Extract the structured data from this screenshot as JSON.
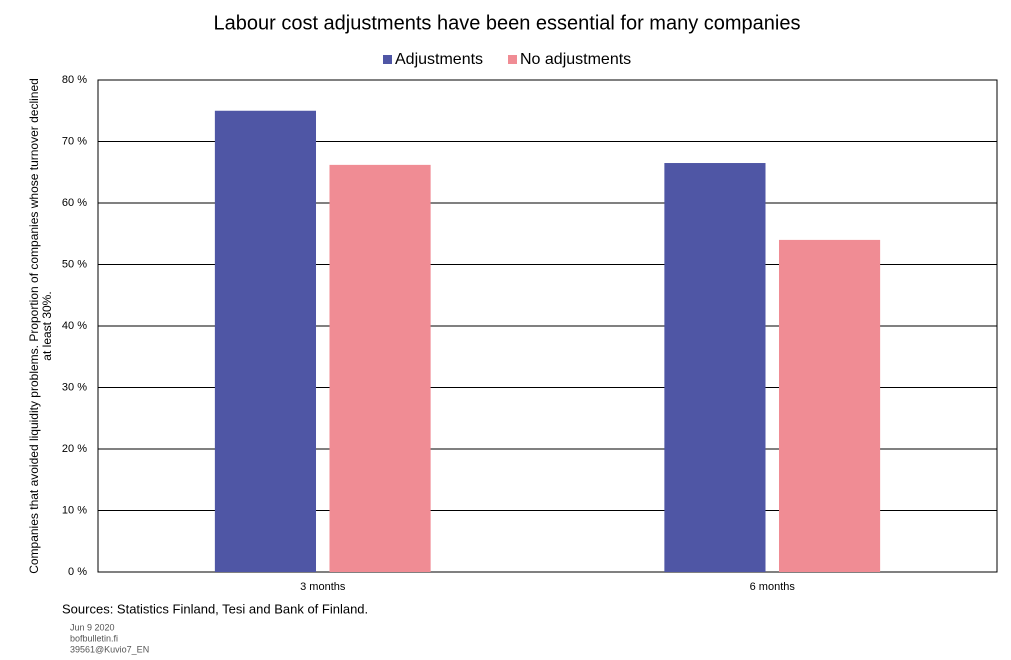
{
  "chart_data": {
    "type": "bar",
    "title": "Labour cost adjustments have been essential for many companies",
    "ylabel": [
      "Companies that avoided liquidity problems. Proportion of companies whose turnover declined",
      "at least 30%."
    ],
    "categories": [
      "3 months",
      "6 months"
    ],
    "series": [
      {
        "name": "Adjustments",
        "color": "#4f56a5",
        "values": [
          75,
          66.5
        ]
      },
      {
        "name": "No adjustments",
        "color": "#f08c94",
        "values": [
          66.2,
          54
        ]
      }
    ],
    "ylim": [
      0,
      80
    ],
    "yticks": [
      {
        "value": 0,
        "label": "0 %"
      },
      {
        "value": 10,
        "label": "10 %"
      },
      {
        "value": 20,
        "label": "20 %"
      },
      {
        "value": 30,
        "label": "30 %"
      },
      {
        "value": 40,
        "label": "40 %"
      },
      {
        "value": 50,
        "label": "50 %"
      },
      {
        "value": 60,
        "label": "60 %"
      },
      {
        "value": 70,
        "label": "70 %"
      },
      {
        "value": 80,
        "label": "80 %"
      }
    ],
    "grid": true,
    "legend": "top",
    "source": "Sources: Statistics Finland, Tesi and Bank of Finland.",
    "footer": [
      "Jun 9 2020",
      "bofbulletin.fi",
      "39561@Kuvio7_EN"
    ]
  }
}
